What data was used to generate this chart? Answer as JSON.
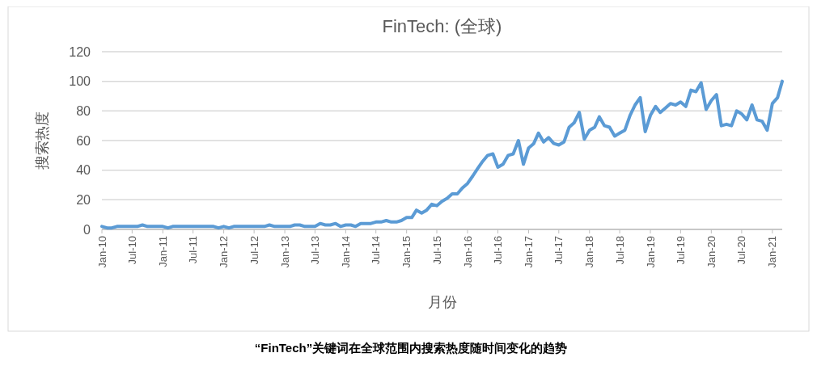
{
  "chart_data": {
    "type": "line",
    "title": "FinTech: (全球)",
    "xlabel": "月份",
    "ylabel": "搜索热度",
    "annotations": [
      "“FinTech”关键词在全球范围内搜索热度随时间变化的趋势"
    ],
    "x": [
      "2010-01",
      "2010-02",
      "2010-03",
      "2010-04",
      "2010-05",
      "2010-06",
      "2010-07",
      "2010-08",
      "2010-09",
      "2010-10",
      "2010-11",
      "2010-12",
      "2011-01",
      "2011-02",
      "2011-03",
      "2011-04",
      "2011-05",
      "2011-06",
      "2011-07",
      "2011-08",
      "2011-09",
      "2011-10",
      "2011-11",
      "2011-12",
      "2012-01",
      "2012-02",
      "2012-03",
      "2012-04",
      "2012-05",
      "2012-06",
      "2012-07",
      "2012-08",
      "2012-09",
      "2012-10",
      "2012-11",
      "2012-12",
      "2013-01",
      "2013-02",
      "2013-03",
      "2013-04",
      "2013-05",
      "2013-06",
      "2013-07",
      "2013-08",
      "2013-09",
      "2013-10",
      "2013-11",
      "2013-12",
      "2014-01",
      "2014-02",
      "2014-03",
      "2014-04",
      "2014-05",
      "2014-06",
      "2014-07",
      "2014-08",
      "2014-09",
      "2014-10",
      "2014-11",
      "2014-12",
      "2015-01",
      "2015-02",
      "2015-03",
      "2015-04",
      "2015-05",
      "2015-06",
      "2015-07",
      "2015-08",
      "2015-09",
      "2015-10",
      "2015-11",
      "2015-12",
      "2016-01",
      "2016-02",
      "2016-03",
      "2016-04",
      "2016-05",
      "2016-06",
      "2016-07",
      "2016-08",
      "2016-09",
      "2016-10",
      "2016-11",
      "2016-12",
      "2017-01",
      "2017-02",
      "2017-03",
      "2017-04",
      "2017-05",
      "2017-06",
      "2017-07",
      "2017-08",
      "2017-09",
      "2017-10",
      "2017-11",
      "2017-12",
      "2018-01",
      "2018-02",
      "2018-03",
      "2018-04",
      "2018-05",
      "2018-06",
      "2018-07",
      "2018-08",
      "2018-09",
      "2018-10",
      "2018-11",
      "2018-12",
      "2019-01",
      "2019-02",
      "2019-03",
      "2019-04",
      "2019-05",
      "2019-06",
      "2019-07",
      "2019-08",
      "2019-09",
      "2019-10",
      "2019-11",
      "2019-12",
      "2020-01",
      "2020-02",
      "2020-03",
      "2020-04",
      "2020-05",
      "2020-06",
      "2020-07",
      "2020-08",
      "2020-09",
      "2020-10",
      "2020-11",
      "2020-12",
      "2021-01",
      "2021-02",
      "2021-03"
    ],
    "series": [
      {
        "color": "#5b9bd5",
        "values": [
          2,
          1,
          1,
          2,
          2,
          2,
          2,
          2,
          3,
          2,
          2,
          2,
          2,
          1,
          2,
          2,
          2,
          2,
          2,
          2,
          2,
          2,
          2,
          1,
          2,
          1,
          2,
          2,
          2,
          2,
          2,
          2,
          2,
          3,
          2,
          2,
          2,
          2,
          3,
          3,
          2,
          2,
          2,
          4,
          3,
          3,
          4,
          2,
          3,
          3,
          2,
          4,
          4,
          4,
          5,
          5,
          6,
          5,
          5,
          6,
          8,
          8,
          13,
          11,
          13,
          17,
          16,
          19,
          21,
          24,
          24,
          28,
          31,
          36,
          41,
          46,
          50,
          51,
          42,
          44,
          50,
          51,
          60,
          44,
          55,
          58,
          65,
          59,
          62,
          58,
          57,
          59,
          69,
          72,
          79,
          61,
          67,
          69,
          76,
          70,
          69,
          63,
          65,
          67,
          77,
          84,
          89,
          66,
          77,
          83,
          79,
          82,
          85,
          84,
          86,
          83,
          94,
          93,
          99,
          81,
          87,
          91,
          70,
          71,
          70,
          80,
          78,
          74,
          84,
          74,
          73,
          67,
          85,
          89,
          100
        ]
      }
    ],
    "xlim": [
      "2010-01",
      "2021-03"
    ],
    "xticks": [
      {
        "value": "2010-01",
        "label": "Jan-10"
      },
      {
        "value": "2010-07",
        "label": "Jul-10"
      },
      {
        "value": "2011-01",
        "label": "Jan-11"
      },
      {
        "value": "2011-07",
        "label": "Jul-11"
      },
      {
        "value": "2012-01",
        "label": "Jan-12"
      },
      {
        "value": "2012-07",
        "label": "Jul-12"
      },
      {
        "value": "2013-01",
        "label": "Jan-13"
      },
      {
        "value": "2013-07",
        "label": "Jul-13"
      },
      {
        "value": "2014-01",
        "label": "Jan-14"
      },
      {
        "value": "2014-07",
        "label": "Jul-14"
      },
      {
        "value": "2015-01",
        "label": "Jan-15"
      },
      {
        "value": "2015-07",
        "label": "Jul-15"
      },
      {
        "value": "2016-01",
        "label": "Jan-16"
      },
      {
        "value": "2016-07",
        "label": "Jul-16"
      },
      {
        "value": "2017-01",
        "label": "Jan-17"
      },
      {
        "value": "2017-07",
        "label": "Jul-17"
      },
      {
        "value": "2018-01",
        "label": "Jan-18"
      },
      {
        "value": "2018-07",
        "label": "Jul-18"
      },
      {
        "value": "2019-01",
        "label": "Jan-19"
      },
      {
        "value": "2019-07",
        "label": "Jul-19"
      },
      {
        "value": "2020-01",
        "label": "Jan-20"
      },
      {
        "value": "2020-07",
        "label": "Jul-20"
      },
      {
        "value": "2021-01",
        "label": "Jan-21"
      }
    ],
    "ylim": [
      0,
      120
    ],
    "yticks": [
      0,
      20,
      40,
      60,
      80,
      100,
      120
    ],
    "grid": "y",
    "marker": "none",
    "line_style": "solid"
  }
}
